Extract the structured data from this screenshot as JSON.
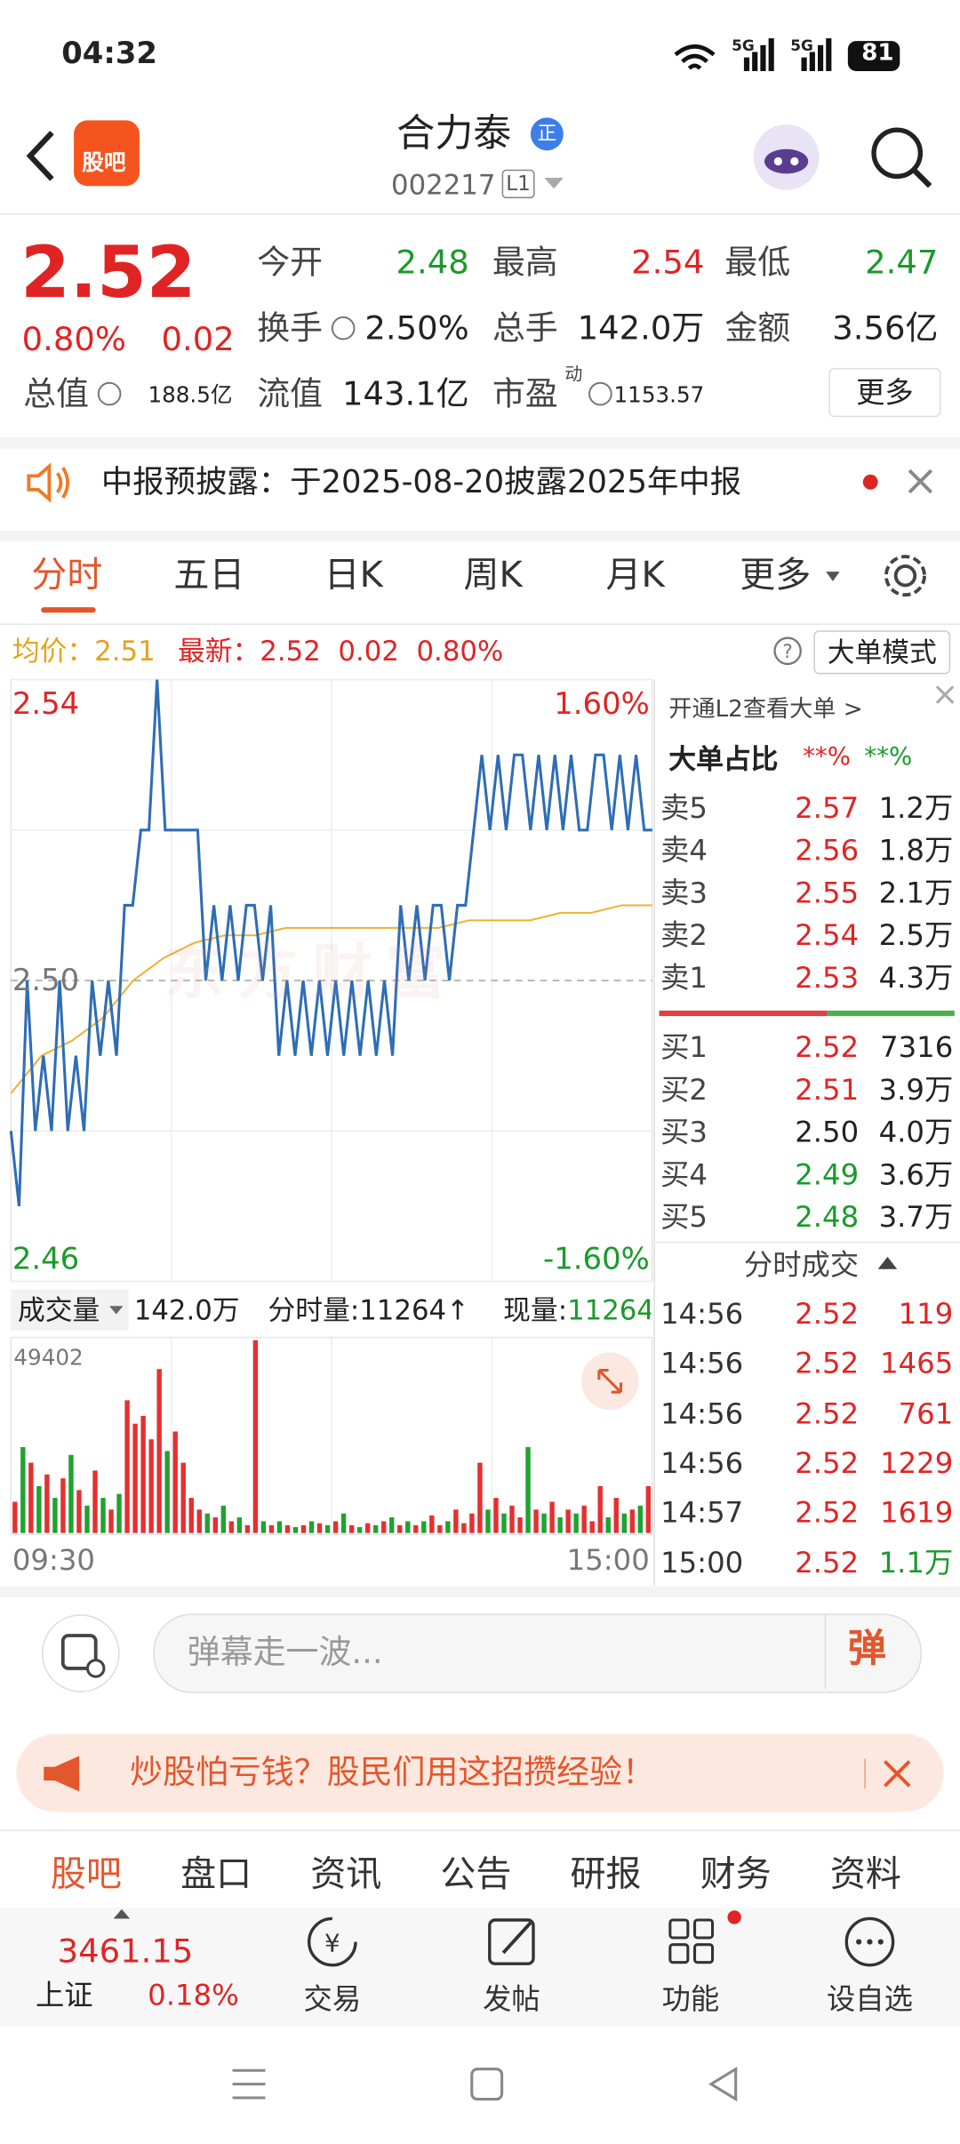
{
  "status": {
    "time": "04:32",
    "network": [
      "5G",
      "5G"
    ],
    "battery": "81"
  },
  "header": {
    "icon": "股吧",
    "title": "合力泰",
    "badge": "正",
    "code": "002217",
    "level": "L1"
  },
  "quote": {
    "price": "2.52",
    "change_pct": "0.80%",
    "change": "0.02",
    "fields": [
      {
        "label": "今开",
        "value": "2.48"
      },
      {
        "label": "最高",
        "value": "2.54"
      },
      {
        "label": "最低",
        "value": "2.47"
      },
      {
        "label": "换手",
        "value": "2.50%"
      },
      {
        "label": "总手",
        "value": "142.0万"
      },
      {
        "label": "金额",
        "value": "3.56亿"
      },
      {
        "label": "总值",
        "value": "188.5亿"
      },
      {
        "label": "流值",
        "value": "143.1亿"
      },
      {
        "label": "市盈",
        "sup": "动",
        "value": "1153.57"
      }
    ],
    "more": "更多"
  },
  "notice": {
    "text": "中报预披露：于2025-08-20披露2025年中报"
  },
  "tabs": [
    "分时",
    "五日",
    "日K",
    "周K",
    "月K",
    "更多"
  ],
  "info": {
    "avg_label": "均价：",
    "avg": "2.51",
    "latest_label": "最新：",
    "latest": "2.52",
    "change": "0.02",
    "pct": "0.80%",
    "mode": "大单模式"
  },
  "intraday": {
    "watermark": "东方财富",
    "price_axis": [
      {
        "value": 2.54,
        "label": "2.54"
      },
      {
        "value": 2.5,
        "label": "2.50"
      },
      {
        "value": 2.46,
        "label": "2.46"
      }
    ],
    "pct_axis": [
      "1.60%",
      "-1.60%"
    ],
    "prices": [
      2.48,
      2.47,
      2.5,
      2.48,
      2.49,
      2.48,
      2.5,
      2.48,
      2.49,
      2.48,
      2.5,
      2.49,
      2.5,
      2.49,
      2.51,
      2.51,
      2.52,
      2.52,
      2.54,
      2.52,
      2.52,
      2.52,
      2.52,
      2.52,
      2.5,
      2.51,
      2.5,
      2.51,
      2.5,
      2.51,
      2.51,
      2.5,
      2.51,
      2.49,
      2.5,
      2.49,
      2.5,
      2.49,
      2.5,
      2.49,
      2.5,
      2.49,
      2.5,
      2.49,
      2.5,
      2.49,
      2.5,
      2.49,
      2.51,
      2.5,
      2.51,
      2.5,
      2.51,
      2.51,
      2.5,
      2.51,
      2.51,
      2.52,
      2.53,
      2.52,
      2.53,
      2.52,
      2.53,
      2.53,
      2.52,
      2.53,
      2.52,
      2.53,
      2.52,
      2.53,
      2.52,
      2.52,
      2.53,
      2.53,
      2.52,
      2.53,
      2.52,
      2.53,
      2.52,
      2.52
    ],
    "avg": [
      2.485,
      2.49,
      2.492,
      2.495,
      2.5,
      2.503,
      2.505,
      2.506,
      2.506,
      2.507,
      2.507,
      2.507,
      2.507,
      2.507,
      2.507,
      2.508,
      2.508,
      2.508,
      2.509,
      2.509,
      2.51,
      2.51
    ],
    "volume_label": "成交量",
    "volume_total": "142.0万",
    "period_volume": "分时量:11264↑",
    "current_volume_label": "现量:",
    "current_volume": "11264",
    "vol_max": 49402,
    "volumes": [
      8000,
      22000,
      18000,
      12000,
      15000,
      9000,
      14000,
      20000,
      11000,
      7000,
      16000,
      9000,
      6000,
      10000,
      34000,
      28000,
      30000,
      24000,
      42000,
      21000,
      26000,
      18000,
      9000,
      6000,
      5000,
      4000,
      7000,
      3000,
      4000,
      2000,
      49402,
      3000,
      2000,
      3000,
      2000,
      1500,
      2000,
      3000,
      2500,
      2000,
      3000,
      5000,
      2000,
      1500,
      2500,
      2000,
      3000,
      4000,
      2000,
      3000,
      2000,
      3000,
      4500,
      2000,
      3000,
      6000,
      2500,
      5000,
      18000,
      6000,
      9000,
      5000,
      7000,
      4000,
      22000,
      6000,
      5000,
      8000,
      4000,
      6000,
      5000,
      7000,
      3000,
      12000,
      4000,
      9000,
      5000,
      6000,
      7000,
      12000
    ],
    "times": [
      "09:30",
      "15:00"
    ]
  },
  "orderbook": {
    "promo": "开通L2查看大单",
    "ratio_label": "大单占比",
    "ratio_buy": "**%",
    "ratio_sell": "**%",
    "asks": [
      {
        "label": "卖5",
        "price": "2.57",
        "volume": "1.2万"
      },
      {
        "label": "卖4",
        "price": "2.56",
        "volume": "1.8万"
      },
      {
        "label": "卖3",
        "price": "2.55",
        "volume": "2.1万"
      },
      {
        "label": "卖2",
        "price": "2.54",
        "volume": "2.5万"
      },
      {
        "label": "卖1",
        "price": "2.53",
        "volume": "4.3万"
      }
    ],
    "bids": [
      {
        "label": "买1",
        "price": "2.52",
        "volume": "7316"
      },
      {
        "label": "买2",
        "price": "2.51",
        "volume": "3.9万"
      },
      {
        "label": "买3",
        "price": "2.50",
        "volume": "4.0万"
      },
      {
        "label": "买4",
        "price": "2.49",
        "volume": "3.6万"
      },
      {
        "label": "买5",
        "price": "2.48",
        "volume": "3.7万"
      }
    ],
    "trades_title": "分时成交",
    "trades": [
      {
        "time": "14:56",
        "price": "2.52",
        "volume": "119"
      },
      {
        "time": "14:56",
        "price": "2.52",
        "volume": "1465"
      },
      {
        "time": "14:56",
        "price": "2.52",
        "volume": "761"
      },
      {
        "time": "14:56",
        "price": "2.52",
        "volume": "1229"
      },
      {
        "time": "14:57",
        "price": "2.52",
        "volume": "1619"
      },
      {
        "time": "15:00",
        "price": "2.52",
        "volume": "1.1万"
      }
    ]
  },
  "comment": {
    "placeholder": "弹幕走一波...",
    "button": "弹"
  },
  "banner": {
    "text": "炒股怕亏钱？股民们用这招攒经验！"
  },
  "subtabs": [
    "股吧",
    "盘口",
    "资讯",
    "公告",
    "研报",
    "财务",
    "资料"
  ],
  "bottom": {
    "index_value": "3461.15",
    "index_name": "上证",
    "index_pct": "0.18%",
    "buttons": [
      "交易",
      "发帖",
      "功能",
      "设自选"
    ]
  }
}
